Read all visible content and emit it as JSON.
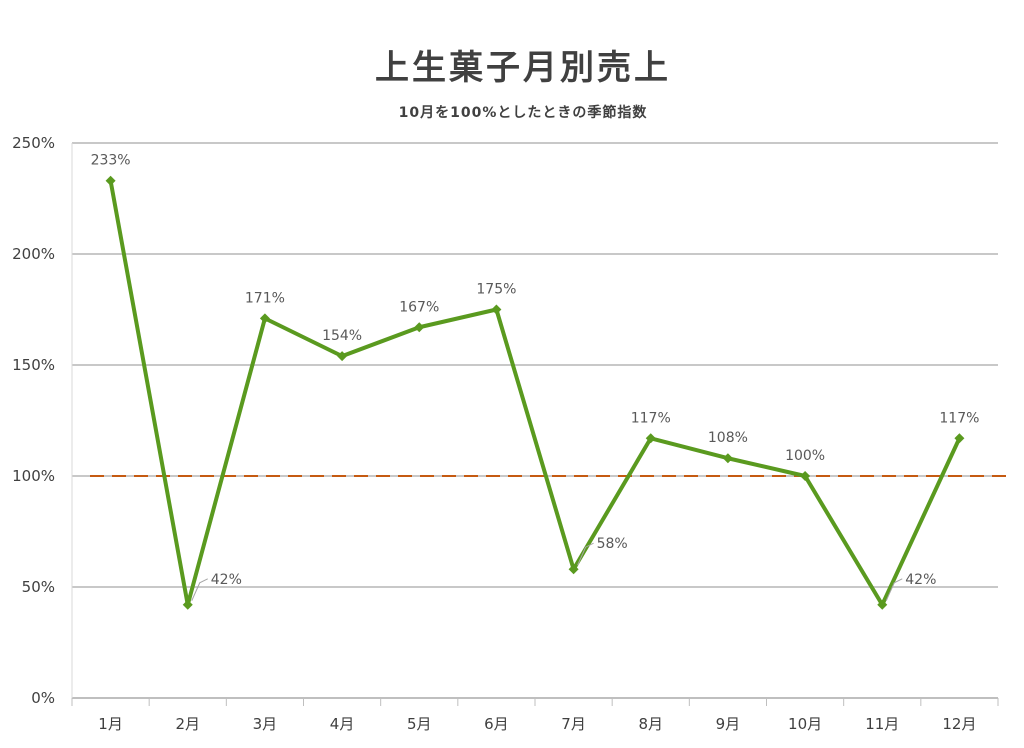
{
  "chart_data": {
    "type": "line",
    "title": "上生菓子月別売上",
    "subtitle": "10月を100%としたときの季節指数",
    "categories": [
      "1月",
      "2月",
      "3月",
      "4月",
      "5月",
      "6月",
      "7月",
      "8月",
      "9月",
      "10月",
      "11月",
      "12月"
    ],
    "series": [
      {
        "values": [
          233,
          42,
          171,
          154,
          167,
          175,
          58,
          117,
          108,
          100,
          42,
          117
        ],
        "color": "#5a9a1f"
      }
    ],
    "data_labels": [
      "233%",
      "42%",
      "171%",
      "154%",
      "167%",
      "175%",
      "58%",
      "117%",
      "108%",
      "100%",
      "42%",
      "117%"
    ],
    "reference_line": {
      "value": 100,
      "style": "dashed",
      "color": "#c55a11"
    },
    "ylim": [
      0,
      250
    ],
    "yticks": [
      0,
      50,
      100,
      150,
      200,
      250
    ],
    "ytick_labels": [
      "0%",
      "50%",
      "100%",
      "150%",
      "200%",
      "250%"
    ],
    "grid": true,
    "legend": "none",
    "xlabel": "",
    "ylabel": ""
  }
}
